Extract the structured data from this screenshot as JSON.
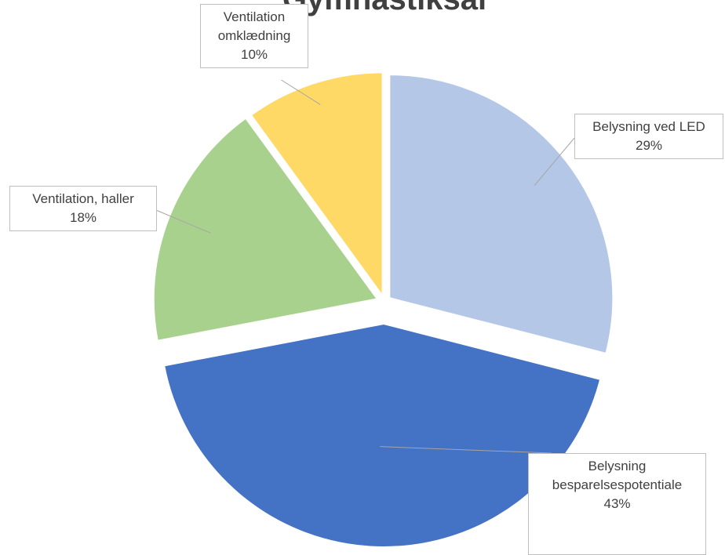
{
  "chart_data": {
    "type": "pie",
    "title": "Gymnastiksal",
    "categories": [
      "Belysning ved LED",
      "Belysning besparelsespotentiale",
      "Ventilation, haller",
      "Ventilation omklædning"
    ],
    "values": [
      29,
      43,
      18,
      10
    ],
    "value_labels": [
      "29%",
      "43%",
      "18%",
      "10%"
    ],
    "colors": [
      "#b4c7e7",
      "#4472c4",
      "#a9d18e",
      "#ffd966"
    ]
  }
}
